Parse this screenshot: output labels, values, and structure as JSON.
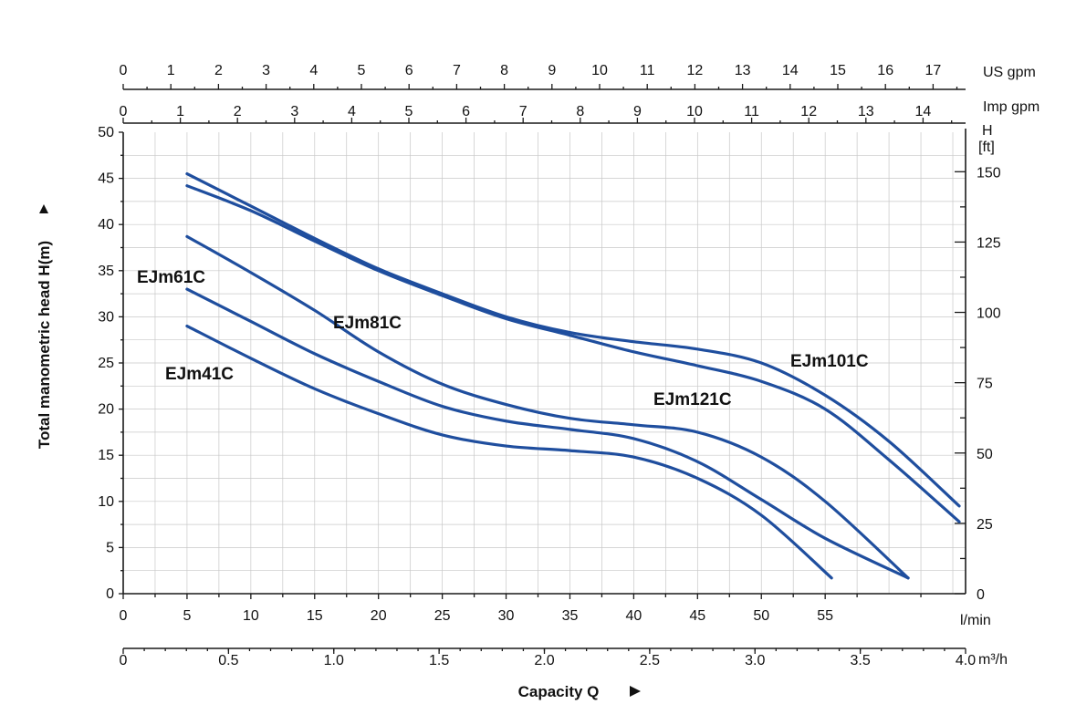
{
  "chart_data": {
    "type": "line",
    "ylabel": "Total manometric head H(m)",
    "xlabel": "Capacity Q",
    "xlim": [
      0,
      66
    ],
    "ylim": [
      0,
      50
    ],
    "grid": true,
    "line_color": "#1f4e9e",
    "x_ticks": [
      0,
      5,
      10,
      15,
      20,
      25,
      30,
      35,
      40,
      45,
      50,
      55
    ],
    "x_unit": "l/min",
    "y_ticks": [
      0,
      5,
      10,
      15,
      20,
      25,
      30,
      35,
      40,
      45,
      50
    ],
    "m3h_ticks": [
      "0",
      "0.5",
      "1.0",
      "1.5",
      "2.0",
      "2.5",
      "3.0",
      "3.5",
      "4.0"
    ],
    "m3h_unit": "m³/h",
    "usgpm_ticks": [
      "0",
      "1",
      "2",
      "3",
      "4",
      "5",
      "6",
      "7",
      "8",
      "9",
      "10",
      "11",
      "12",
      "13",
      "14",
      "15",
      "16",
      "17"
    ],
    "usgpm_unit": "US gpm",
    "impgpm_ticks": [
      "0",
      "1",
      "2",
      "3",
      "4",
      "5",
      "6",
      "7",
      "8",
      "9",
      "10",
      "11",
      "12",
      "13",
      "14"
    ],
    "impgpm_unit": "Imp gpm",
    "ft_ticks": [
      "0",
      "25",
      "50",
      "75",
      "100",
      "125",
      "150"
    ],
    "ft_unit_top": "H",
    "ft_unit_bottom": "[ft]",
    "series": [
      {
        "name": "EJm41C",
        "x": [
          5,
          10,
          15,
          20,
          25,
          30,
          35,
          40,
          45,
          50,
          55.5
        ],
        "y": [
          29,
          25.5,
          22.2,
          19.5,
          17.2,
          16,
          15.5,
          14.8,
          12.5,
          8.5,
          1.7
        ]
      },
      {
        "name": "EJm61C",
        "x": [
          5,
          10,
          15,
          20,
          25,
          30,
          35,
          40,
          45,
          50,
          55,
          61.5
        ],
        "y": [
          33,
          29.5,
          26,
          23,
          20.3,
          18.7,
          17.8,
          16.8,
          14.3,
          10.2,
          6,
          1.7
        ]
      },
      {
        "name": "EJm81C",
        "x": [
          5,
          10,
          15,
          20,
          25,
          30,
          35,
          40,
          45,
          50,
          55,
          61.5
        ],
        "y": [
          38.7,
          34.8,
          30.7,
          26.2,
          22.7,
          20.5,
          19,
          18.3,
          17.5,
          14.8,
          10,
          1.7
        ]
      },
      {
        "name": "EJm101C",
        "x": [
          5,
          10,
          15,
          20,
          25,
          30,
          35,
          40,
          45,
          50,
          55,
          60,
          65.5
        ],
        "y": [
          45.5,
          42,
          38.5,
          35.2,
          32.5,
          30,
          28.3,
          27.3,
          26.5,
          25,
          21.5,
          16.5,
          9.5
        ]
      },
      {
        "name": "EJm121C",
        "x": [
          5,
          10,
          15,
          20,
          25,
          30,
          35,
          40,
          45,
          50,
          55,
          60,
          65.5
        ],
        "y": [
          44.2,
          41.5,
          38.2,
          35,
          32.3,
          29.8,
          28,
          26.2,
          24.7,
          23,
          20,
          14.5,
          7.8
        ]
      }
    ]
  }
}
